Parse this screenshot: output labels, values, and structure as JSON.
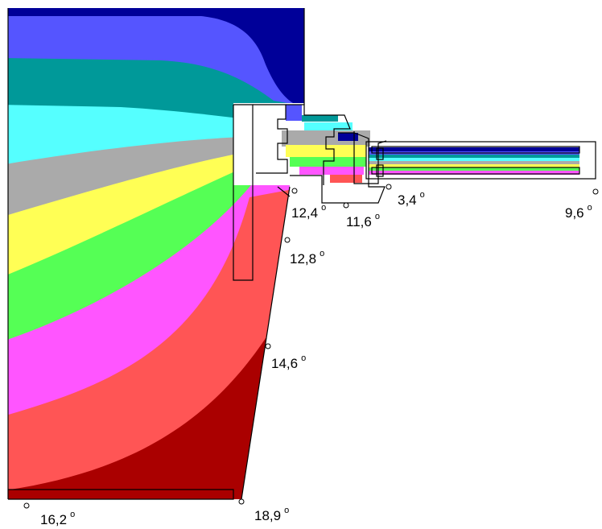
{
  "diagram": {
    "colors": {
      "band_1": "#000099",
      "band_2": "#5555ff",
      "band_3": "#009999",
      "band_4": "#55ffff",
      "band_5": "#aaaaaa",
      "band_6": "#ffff55",
      "band_7": "#55ff55",
      "band_8": "#ff55ff",
      "band_9": "#ff5555",
      "band_10": "#aa0000",
      "outline": "#000000"
    },
    "labels": [
      {
        "value": "16,2",
        "unit": "o"
      },
      {
        "value": "18,9",
        "unit": "o"
      },
      {
        "value": "14,6",
        "unit": "o"
      },
      {
        "value": "12,8",
        "unit": "o"
      },
      {
        "value": "12,4",
        "unit": "o"
      },
      {
        "value": "11,6",
        "unit": "o"
      },
      {
        "value": "3,4",
        "unit": "o"
      },
      {
        "value": "9,6",
        "unit": "o"
      }
    ]
  }
}
